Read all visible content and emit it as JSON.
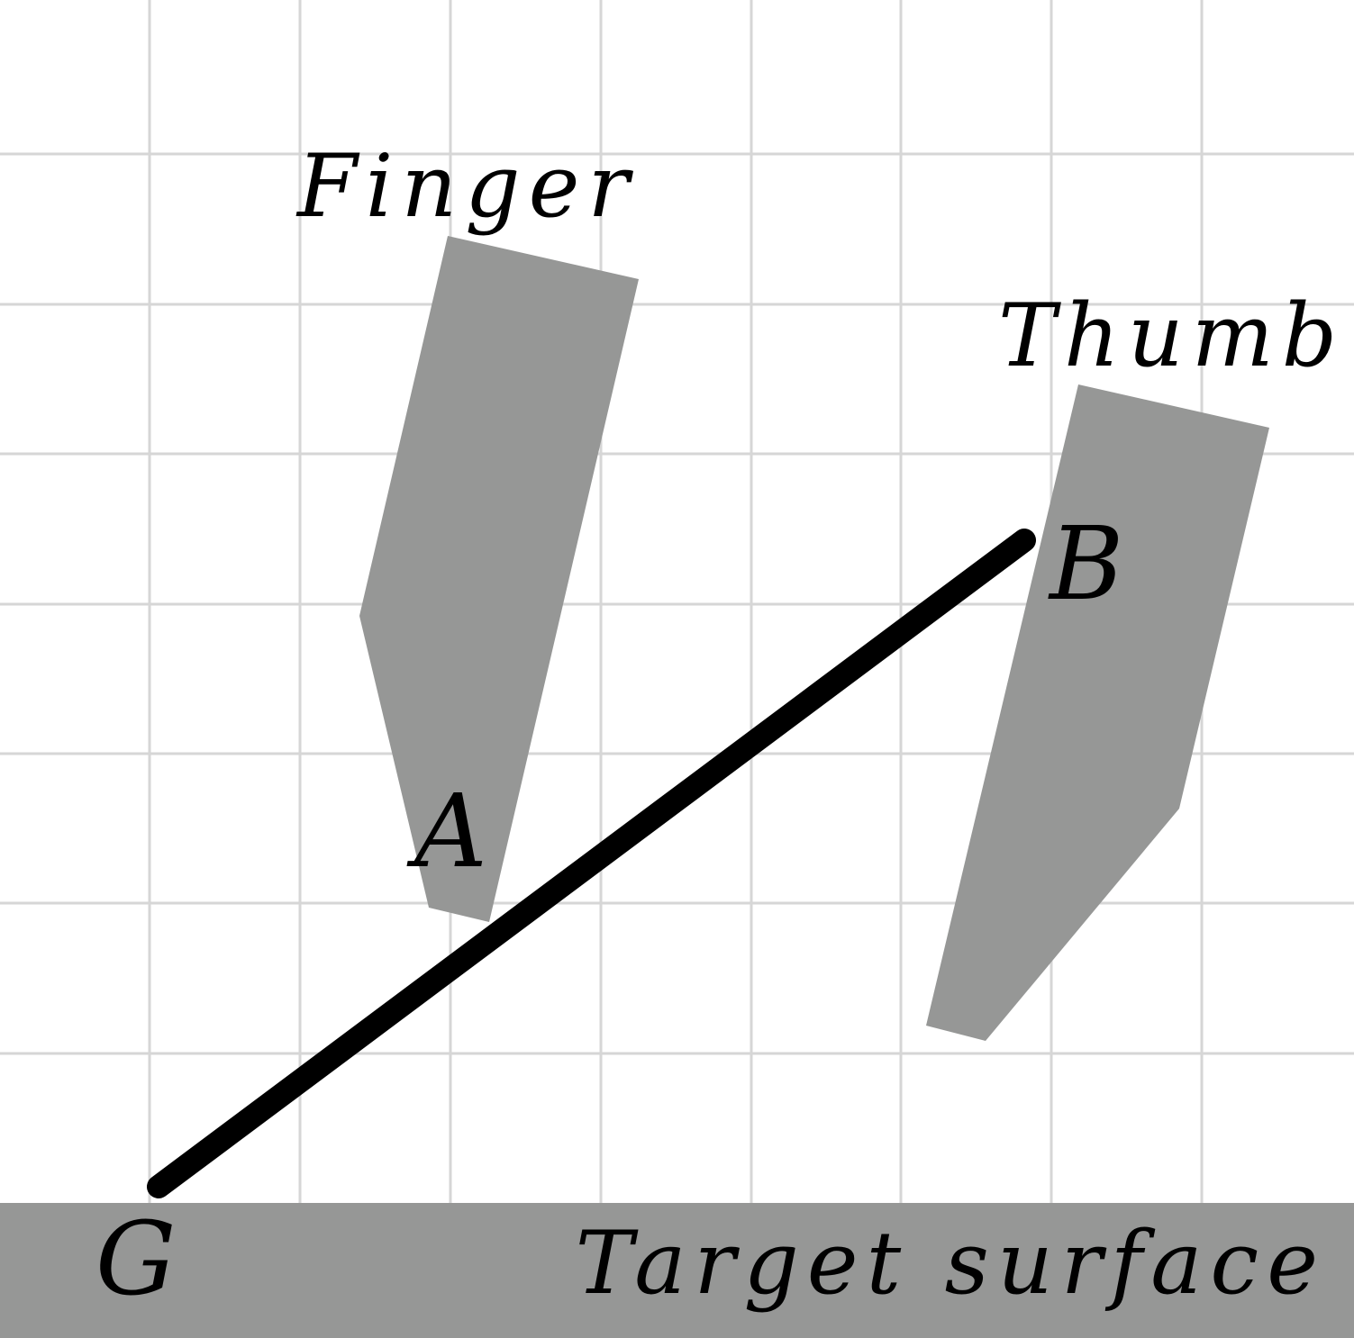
{
  "labels": {
    "finger": "Finger",
    "thumb": "Thumb",
    "point_a": "A",
    "point_b": "B",
    "point_g": "G",
    "target_surface": "Target surface"
  },
  "colors": {
    "background": "#ffffff",
    "grid": "#d6d6d6",
    "shape_fill": "#969796",
    "rod": "#000000",
    "text": "#000000"
  }
}
